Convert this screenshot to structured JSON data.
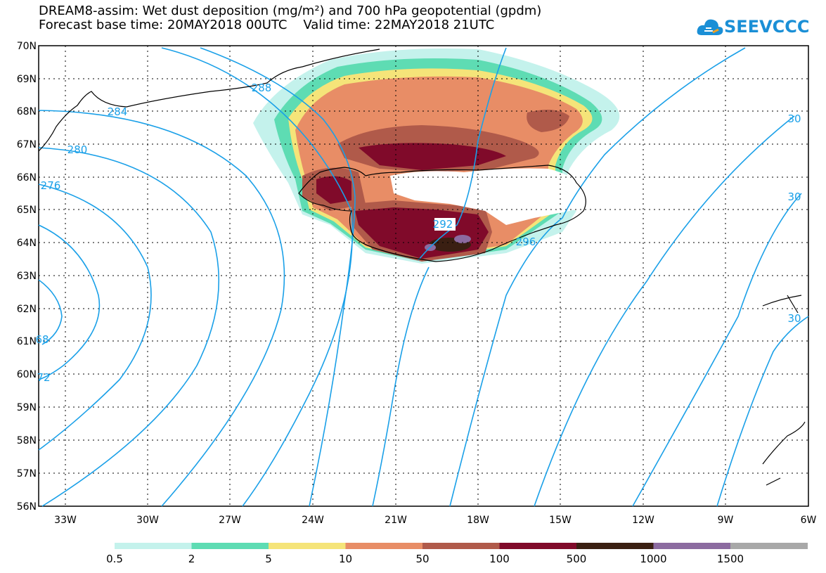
{
  "header": {
    "title_line1": "DREAM8-assim: Wet dust deposition (mg/m²) and 700 hPa geopotential (gpdm)",
    "title_line2": "Forecast base time: 20MAY2018 00UTC    Valid time: 22MAY2018 21UTC"
  },
  "logo": {
    "text": "SEEVCCC",
    "icon": "cloud-logo-icon",
    "color": "#1a8fd6"
  },
  "map": {
    "lat_labels": [
      "70N",
      "69N",
      "68N",
      "67N",
      "66N",
      "65N",
      "64N",
      "63N",
      "62N",
      "61N",
      "60N",
      "59N",
      "58N",
      "57N",
      "56N"
    ],
    "lon_labels": [
      "33W",
      "30W",
      "27W",
      "24W",
      "21W",
      "18W",
      "15W",
      "12W",
      "9W",
      "6W"
    ],
    "contour_color": "#1aa0e8",
    "contour_labels": [
      "284",
      "288",
      "280",
      "276",
      "68",
      "72",
      "292",
      "296",
      "30",
      "30",
      "30"
    ]
  },
  "legend": {
    "colors": [
      "#c4f2ec",
      "#5edcb3",
      "#f5e479",
      "#e88d66",
      "#b05a4a",
      "#800a2a",
      "#3a1f12",
      "#8c6ba0",
      "#a8a8a8"
    ],
    "labels": [
      "0.5",
      "2",
      "5",
      "10",
      "50",
      "100",
      "500",
      "1000",
      "1500"
    ]
  }
}
